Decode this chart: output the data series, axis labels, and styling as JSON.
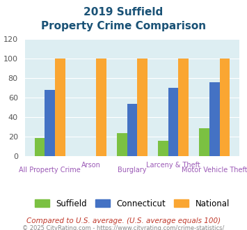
{
  "title_line1": "2019 Suffield",
  "title_line2": "Property Crime Comparison",
  "categories": [
    "All Property Crime",
    "Arson",
    "Burglary",
    "Larceny & Theft",
    "Motor Vehicle Theft"
  ],
  "suffield": [
    19,
    0,
    24,
    16,
    29
  ],
  "connecticut": [
    68,
    0,
    54,
    70,
    76
  ],
  "national": [
    100,
    100,
    100,
    100,
    100
  ],
  "suffield_color": "#7bc142",
  "connecticut_color": "#4472c4",
  "national_color": "#faa632",
  "bg_color": "#ddeef2",
  "title_color": "#1a5276",
  "xlabel_color": "#9b59b6",
  "ylabel_color": "#555555",
  "ylim": [
    0,
    120
  ],
  "yticks": [
    0,
    20,
    40,
    60,
    80,
    100,
    120
  ],
  "footnote1": "Compared to U.S. average. (U.S. average equals 100)",
  "footnote2": "© 2025 CityRating.com - https://www.cityrating.com/crime-statistics/",
  "footnote1_color": "#c0392b",
  "footnote2_color": "#888888",
  "legend_labels": [
    "Suffield",
    "Connecticut",
    "National"
  ],
  "label_y_offsets": [
    -0.13,
    -0.07,
    -0.13,
    -0.07,
    -0.13
  ]
}
